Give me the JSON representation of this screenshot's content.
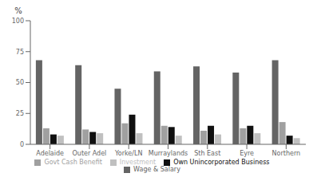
{
  "chart_data": {
    "type": "bar",
    "ylabel": "%",
    "categories": [
      "Adelaide",
      "Outer Adel",
      "Yorke/LN",
      "Murraylands",
      "Sth East",
      "Eyre",
      "Northern"
    ],
    "series": [
      {
        "name": "Wage & Salary",
        "color": "#646464",
        "values": [
          68,
          64,
          45,
          59,
          63,
          58,
          68
        ]
      },
      {
        "name": "Govt Cash Benefit",
        "color": "#a0a0a0",
        "values": [
          13,
          12,
          17,
          15,
          11,
          13,
          18
        ]
      },
      {
        "name": "Own Unincorporated Business",
        "color": "#101010",
        "values": [
          8,
          10,
          24,
          14,
          15,
          15,
          7
        ]
      },
      {
        "name": "Investment",
        "color": "#c0c0c0",
        "values": [
          7,
          9,
          9,
          7,
          8,
          9,
          5
        ]
      }
    ],
    "ylim": [
      0,
      100
    ],
    "yticks": [
      0,
      25,
      50,
      75,
      100
    ],
    "grid": false,
    "legend": "bottom"
  }
}
